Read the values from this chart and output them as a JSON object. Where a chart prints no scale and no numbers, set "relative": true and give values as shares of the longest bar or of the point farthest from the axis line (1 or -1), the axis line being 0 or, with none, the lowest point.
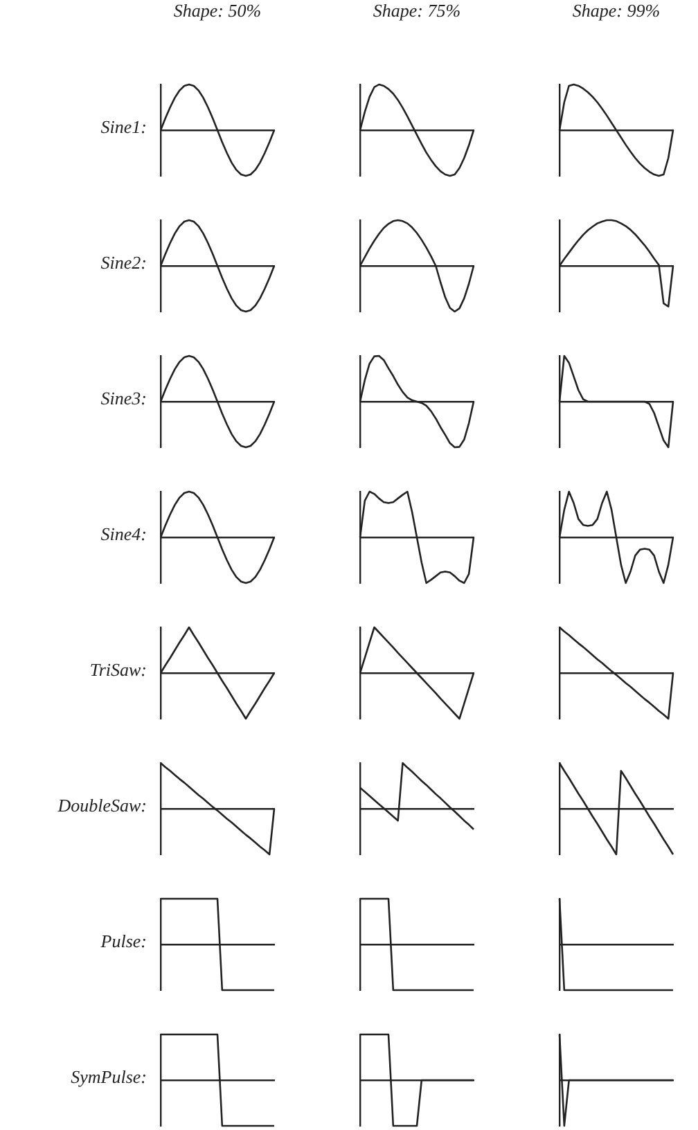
{
  "chart_data": [
    {
      "type": "line",
      "relative": true,
      "title": "Shape: 50%",
      "ylabel": "Sine1:",
      "color": "#222222",
      "categories": [
        null,
        null,
        null,
        null,
        null,
        null,
        null,
        null,
        null,
        null,
        null,
        null,
        null,
        null,
        null,
        null,
        null,
        null,
        null,
        null,
        null,
        null,
        null,
        null,
        null
      ],
      "values": [
        0,
        0.26,
        0.5,
        0.71,
        0.87,
        0.97,
        1,
        0.97,
        0.87,
        0.71,
        0.5,
        0.26,
        0,
        -0.26,
        -0.5,
        -0.71,
        -0.87,
        -0.97,
        -1,
        -0.97,
        -0.87,
        -0.71,
        -0.5,
        -0.26,
        0
      ]
    },
    {
      "type": "line",
      "relative": true,
      "title": "Shape: 75%",
      "color": "#222222",
      "categories": [
        null,
        null,
        null,
        null,
        null,
        null,
        null,
        null,
        null,
        null,
        null,
        null,
        null,
        null,
        null,
        null,
        null,
        null,
        null,
        null,
        null,
        null,
        null,
        null,
        null
      ],
      "values": [
        0,
        0.4,
        0.73,
        0.94,
        1,
        0.97,
        0.9,
        0.8,
        0.66,
        0.49,
        0.3,
        0.1,
        -0.1,
        -0.3,
        -0.49,
        -0.65,
        -0.79,
        -0.9,
        -0.97,
        -1,
        -0.97,
        -0.83,
        -0.61,
        -0.33,
        0
      ]
    },
    {
      "type": "line",
      "relative": true,
      "title": "Shape: 99%",
      "color": "#222222",
      "categories": [
        null,
        null,
        null,
        null,
        null,
        null,
        null,
        null,
        null,
        null,
        null,
        null,
        null,
        null,
        null,
        null,
        null,
        null,
        null,
        null,
        null,
        null,
        null,
        null,
        null
      ],
      "values": [
        0,
        0.61,
        0.97,
        1,
        0.97,
        0.91,
        0.83,
        0.73,
        0.61,
        0.47,
        0.32,
        0.16,
        0,
        -0.16,
        -0.32,
        -0.47,
        -0.61,
        -0.73,
        -0.83,
        -0.91,
        -0.97,
        -1,
        -0.97,
        -0.61,
        0
      ]
    },
    {
      "type": "line",
      "relative": true,
      "ylabel": "Sine2:",
      "color": "#222222",
      "categories": [
        null,
        null,
        null,
        null,
        null,
        null,
        null,
        null,
        null,
        null,
        null,
        null,
        null,
        null,
        null,
        null,
        null,
        null,
        null,
        null,
        null,
        null,
        null,
        null,
        null
      ],
      "values": [
        0,
        0.26,
        0.5,
        0.71,
        0.87,
        0.97,
        1,
        0.97,
        0.87,
        0.71,
        0.5,
        0.26,
        0,
        -0.26,
        -0.5,
        -0.71,
        -0.87,
        -0.97,
        -1,
        -0.97,
        -0.87,
        -0.71,
        -0.5,
        -0.26,
        0
      ]
    },
    {
      "type": "line",
      "relative": true,
      "color": "#222222",
      "categories": [
        null,
        null,
        null,
        null,
        null,
        null,
        null,
        null,
        null,
        null,
        null,
        null,
        null,
        null,
        null,
        null,
        null,
        null,
        null,
        null,
        null,
        null,
        null,
        null,
        null
      ],
      "values": [
        0,
        0.19,
        0.38,
        0.55,
        0.7,
        0.83,
        0.92,
        0.98,
        1,
        0.98,
        0.93,
        0.84,
        0.72,
        0.57,
        0.4,
        0.21,
        0,
        -0.36,
        -0.69,
        -0.92,
        -1,
        -0.93,
        -0.71,
        -0.39,
        0
      ]
    },
    {
      "type": "line",
      "relative": true,
      "color": "#222222",
      "categories": [
        null,
        null,
        null,
        null,
        null,
        null,
        null,
        null,
        null,
        null,
        null,
        null,
        null,
        null,
        null,
        null,
        null,
        null,
        null,
        null,
        null,
        null,
        null,
        null,
        null
      ],
      "values": [
        0,
        0.15,
        0.29,
        0.43,
        0.56,
        0.68,
        0.78,
        0.86,
        0.93,
        0.97,
        1,
        1,
        0.98,
        0.93,
        0.87,
        0.79,
        0.69,
        0.57,
        0.45,
        0.31,
        0.16,
        0.02,
        -0.82,
        -0.89,
        0
      ]
    },
    {
      "type": "line",
      "relative": true,
      "ylabel": "Sine3:",
      "color": "#222222",
      "categories": [
        null,
        null,
        null,
        null,
        null,
        null,
        null,
        null,
        null,
        null,
        null,
        null,
        null,
        null,
        null,
        null,
        null,
        null,
        null,
        null,
        null,
        null,
        null,
        null,
        null
      ],
      "values": [
        0,
        0.26,
        0.5,
        0.71,
        0.87,
        0.97,
        1,
        0.97,
        0.87,
        0.71,
        0.5,
        0.26,
        0,
        -0.26,
        -0.5,
        -0.71,
        -0.87,
        -0.97,
        -1,
        -0.97,
        -0.87,
        -0.71,
        -0.5,
        -0.26,
        0
      ]
    },
    {
      "type": "line",
      "relative": true,
      "color": "#222222",
      "categories": [
        null,
        null,
        null,
        null,
        null,
        null,
        null,
        null,
        null,
        null,
        null,
        null,
        null,
        null,
        null,
        null,
        null,
        null,
        null,
        null,
        null,
        null,
        null,
        null,
        null
      ],
      "values": [
        0,
        0.47,
        0.83,
        0.99,
        1,
        0.91,
        0.73,
        0.56,
        0.37,
        0.21,
        0.09,
        0.03,
        0,
        -0.03,
        -0.09,
        -0.21,
        -0.37,
        -0.56,
        -0.73,
        -0.91,
        -1,
        -0.99,
        -0.83,
        -0.47,
        0
      ]
    },
    {
      "type": "line",
      "relative": true,
      "color": "#222222",
      "categories": [
        null,
        null,
        null,
        null,
        null,
        null,
        null,
        null,
        null,
        null,
        null,
        null,
        null,
        null,
        null,
        null,
        null,
        null,
        null,
        null,
        null,
        null,
        null,
        null,
        null
      ],
      "values": [
        0,
        1,
        0.85,
        0.55,
        0.25,
        0.05,
        0,
        0,
        0,
        0,
        0,
        0,
        0,
        0,
        0,
        0,
        0,
        0,
        0,
        -0.05,
        -0.25,
        -0.55,
        -0.85,
        -1,
        0
      ]
    },
    {
      "type": "line",
      "relative": true,
      "ylabel": "Sine4:",
      "color": "#222222",
      "categories": [
        null,
        null,
        null,
        null,
        null,
        null,
        null,
        null,
        null,
        null,
        null,
        null,
        null,
        null,
        null,
        null,
        null,
        null,
        null,
        null,
        null,
        null,
        null,
        null,
        null
      ],
      "values": [
        0,
        0.26,
        0.5,
        0.71,
        0.87,
        0.97,
        1,
        0.97,
        0.87,
        0.71,
        0.5,
        0.26,
        0,
        -0.26,
        -0.5,
        -0.71,
        -0.87,
        -0.97,
        -1,
        -0.97,
        -0.87,
        -0.71,
        -0.5,
        -0.26,
        0
      ]
    },
    {
      "type": "line",
      "relative": true,
      "color": "#222222",
      "categories": [
        null,
        null,
        null,
        null,
        null,
        null,
        null,
        null,
        null,
        null,
        null,
        null,
        null,
        null,
        null,
        null,
        null,
        null,
        null,
        null,
        null,
        null,
        null,
        null,
        null
      ],
      "values": [
        0,
        0.8,
        1,
        0.95,
        0.85,
        0.77,
        0.75,
        0.77,
        0.85,
        0.93,
        1,
        0.55,
        0,
        -0.55,
        -1,
        -0.93,
        -0.85,
        -0.77,
        -0.75,
        -0.77,
        -0.85,
        -0.95,
        -1,
        -0.8,
        0
      ]
    },
    {
      "type": "line",
      "relative": true,
      "color": "#222222",
      "categories": [
        null,
        null,
        null,
        null,
        null,
        null,
        null,
        null,
        null,
        null,
        null,
        null,
        null,
        null,
        null,
        null,
        null,
        null,
        null,
        null,
        null,
        null,
        null,
        null,
        null
      ],
      "values": [
        0,
        0.6,
        1,
        0.75,
        0.4,
        0.27,
        0.25,
        0.27,
        0.4,
        0.75,
        1,
        0.6,
        0,
        -0.6,
        -1,
        -0.75,
        -0.4,
        -0.27,
        -0.25,
        -0.27,
        -0.4,
        -0.75,
        -1,
        -0.6,
        0
      ]
    },
    {
      "type": "line",
      "relative": true,
      "ylabel": "TriSaw:",
      "color": "#222222",
      "categories": [
        null,
        null,
        null,
        null,
        null,
        null,
        null,
        null,
        null,
        null,
        null,
        null,
        null,
        null,
        null,
        null,
        null,
        null,
        null,
        null,
        null,
        null,
        null,
        null,
        null
      ],
      "values": [
        0,
        0.17,
        0.33,
        0.5,
        0.67,
        0.83,
        1,
        0.83,
        0.67,
        0.5,
        0.33,
        0.17,
        0,
        -0.17,
        -0.33,
        -0.5,
        -0.67,
        -0.83,
        -1,
        -0.83,
        -0.67,
        -0.5,
        -0.33,
        -0.17,
        0
      ]
    },
    {
      "type": "line",
      "relative": true,
      "color": "#222222",
      "categories": [
        null,
        null,
        null,
        null,
        null,
        null,
        null,
        null,
        null,
        null,
        null,
        null,
        null,
        null,
        null,
        null,
        null,
        null,
        null,
        null,
        null,
        null,
        null,
        null,
        null
      ],
      "values": [
        0,
        0.33,
        0.67,
        1,
        0.89,
        0.78,
        0.67,
        0.56,
        0.44,
        0.33,
        0.22,
        0.11,
        0,
        -0.11,
        -0.22,
        -0.33,
        -0.44,
        -0.56,
        -0.67,
        -0.78,
        -0.89,
        -1,
        -0.67,
        -0.33,
        0
      ]
    },
    {
      "type": "line",
      "relative": true,
      "color": "#222222",
      "categories": [
        null,
        null,
        null,
        null,
        null,
        null,
        null,
        null,
        null,
        null,
        null,
        null,
        null,
        null,
        null,
        null,
        null,
        null,
        null,
        null,
        null,
        null,
        null,
        null,
        null
      ],
      "values": [
        1,
        0.91,
        0.83,
        0.74,
        0.65,
        0.57,
        0.48,
        0.39,
        0.3,
        0.22,
        0.13,
        0.04,
        -0.04,
        -0.13,
        -0.22,
        -0.3,
        -0.39,
        -0.48,
        -0.57,
        -0.65,
        -0.74,
        -0.83,
        -0.91,
        -1,
        0
      ]
    },
    {
      "type": "line",
      "relative": true,
      "ylabel": "DoubleSaw:",
      "color": "#222222",
      "categories": [
        null,
        null,
        null,
        null,
        null,
        null,
        null,
        null,
        null,
        null,
        null,
        null,
        null,
        null,
        null,
        null,
        null,
        null,
        null,
        null,
        null,
        null,
        null,
        null,
        null
      ],
      "values": [
        1,
        0.91,
        0.83,
        0.74,
        0.65,
        0.57,
        0.48,
        0.39,
        0.3,
        0.22,
        0.13,
        0.04,
        -0.04,
        -0.13,
        -0.22,
        -0.3,
        -0.39,
        -0.48,
        -0.57,
        -0.65,
        -0.74,
        -0.83,
        -0.91,
        -1,
        0
      ]
    },
    {
      "type": "line",
      "relative": true,
      "color": "#222222",
      "categories": [
        null,
        null,
        null,
        null,
        null,
        null,
        null,
        null,
        null,
        null,
        null,
        null,
        null,
        null,
        null,
        null,
        null,
        null,
        null,
        null,
        null,
        null,
        null,
        null,
        null
      ],
      "values": [
        0.46,
        0.37,
        0.28,
        0.19,
        0.1,
        0.01,
        -0.08,
        -0.17,
        -0.26,
        1,
        0.9,
        0.81,
        0.71,
        0.61,
        0.52,
        0.42,
        0.32,
        0.23,
        0.13,
        0.03,
        -0.06,
        -0.16,
        -0.26,
        -0.35,
        -0.45
      ]
    },
    {
      "type": "line",
      "relative": true,
      "color": "#222222",
      "categories": [
        null,
        null,
        null,
        null,
        null,
        null,
        null,
        null,
        null,
        null,
        null,
        null,
        null,
        null,
        null,
        null,
        null,
        null,
        null,
        null,
        null,
        null,
        null,
        null,
        null
      ],
      "values": [
        1,
        0.83,
        0.67,
        0.5,
        0.33,
        0.17,
        0,
        -0.17,
        -0.33,
        -0.5,
        -0.67,
        -0.83,
        -1,
        0.83,
        0.67,
        0.5,
        0.33,
        0.17,
        0,
        -0.17,
        -0.33,
        -0.5,
        -0.67,
        -0.83,
        -1
      ]
    },
    {
      "type": "line",
      "relative": true,
      "ylabel": "Pulse:",
      "color": "#222222",
      "categories": [
        null,
        null,
        null,
        null,
        null,
        null,
        null,
        null,
        null,
        null,
        null,
        null,
        null,
        null,
        null,
        null,
        null,
        null,
        null,
        null,
        null,
        null,
        null,
        null,
        null
      ],
      "values": [
        1,
        1,
        1,
        1,
        1,
        1,
        1,
        1,
        1,
        1,
        1,
        1,
        1,
        -1,
        -1,
        -1,
        -1,
        -1,
        -1,
        -1,
        -1,
        -1,
        -1,
        -1,
        -1
      ]
    },
    {
      "type": "line",
      "relative": true,
      "color": "#222222",
      "categories": [
        null,
        null,
        null,
        null,
        null,
        null,
        null,
        null,
        null,
        null,
        null,
        null,
        null,
        null,
        null,
        null,
        null,
        null,
        null,
        null,
        null,
        null,
        null,
        null,
        null
      ],
      "values": [
        1,
        1,
        1,
        1,
        1,
        1,
        1,
        -1,
        -1,
        -1,
        -1,
        -1,
        -1,
        -1,
        -1,
        -1,
        -1,
        -1,
        -1,
        -1,
        -1,
        -1,
        -1,
        -1,
        -1
      ]
    },
    {
      "type": "line",
      "relative": true,
      "color": "#222222",
      "categories": [
        null,
        null,
        null,
        null,
        null,
        null,
        null,
        null,
        null,
        null,
        null,
        null,
        null,
        null,
        null,
        null,
        null,
        null,
        null,
        null,
        null,
        null,
        null,
        null,
        null
      ],
      "values": [
        1,
        -1,
        -1,
        -1,
        -1,
        -1,
        -1,
        -1,
        -1,
        -1,
        -1,
        -1,
        -1,
        -1,
        -1,
        -1,
        -1,
        -1,
        -1,
        -1,
        -1,
        -1,
        -1,
        -1,
        -1
      ]
    },
    {
      "type": "line",
      "relative": true,
      "ylabel": "SymPulse:",
      "color": "#222222",
      "categories": [
        null,
        null,
        null,
        null,
        null,
        null,
        null,
        null,
        null,
        null,
        null,
        null,
        null,
        null,
        null,
        null,
        null,
        null,
        null,
        null,
        null,
        null,
        null,
        null,
        null
      ],
      "values": [
        1,
        1,
        1,
        1,
        1,
        1,
        1,
        1,
        1,
        1,
        1,
        1,
        1,
        -1,
        -1,
        -1,
        -1,
        -1,
        -1,
        -1,
        -1,
        -1,
        -1,
        -1,
        -1
      ]
    },
    {
      "type": "line",
      "relative": true,
      "color": "#222222",
      "categories": [
        null,
        null,
        null,
        null,
        null,
        null,
        null,
        null,
        null,
        null,
        null,
        null,
        null,
        null,
        null,
        null,
        null,
        null,
        null,
        null,
        null,
        null,
        null,
        null,
        null
      ],
      "values": [
        1,
        1,
        1,
        1,
        1,
        1,
        1,
        -1,
        -1,
        -1,
        -1,
        -1,
        -1,
        0,
        0,
        0,
        0,
        0,
        0,
        0,
        0,
        0,
        0,
        0,
        0
      ]
    },
    {
      "type": "line",
      "relative": true,
      "color": "#222222",
      "categories": [
        null,
        null,
        null,
        null,
        null,
        null,
        null,
        null,
        null,
        null,
        null,
        null,
        null,
        null,
        null,
        null,
        null,
        null,
        null,
        null,
        null,
        null,
        null,
        null,
        null
      ],
      "values": [
        1,
        -1,
        0,
        0,
        0,
        0,
        0,
        0,
        0,
        0,
        0,
        0,
        0,
        0,
        0,
        0,
        0,
        0,
        0,
        0,
        0,
        0,
        0,
        0,
        0
      ]
    }
  ]
}
